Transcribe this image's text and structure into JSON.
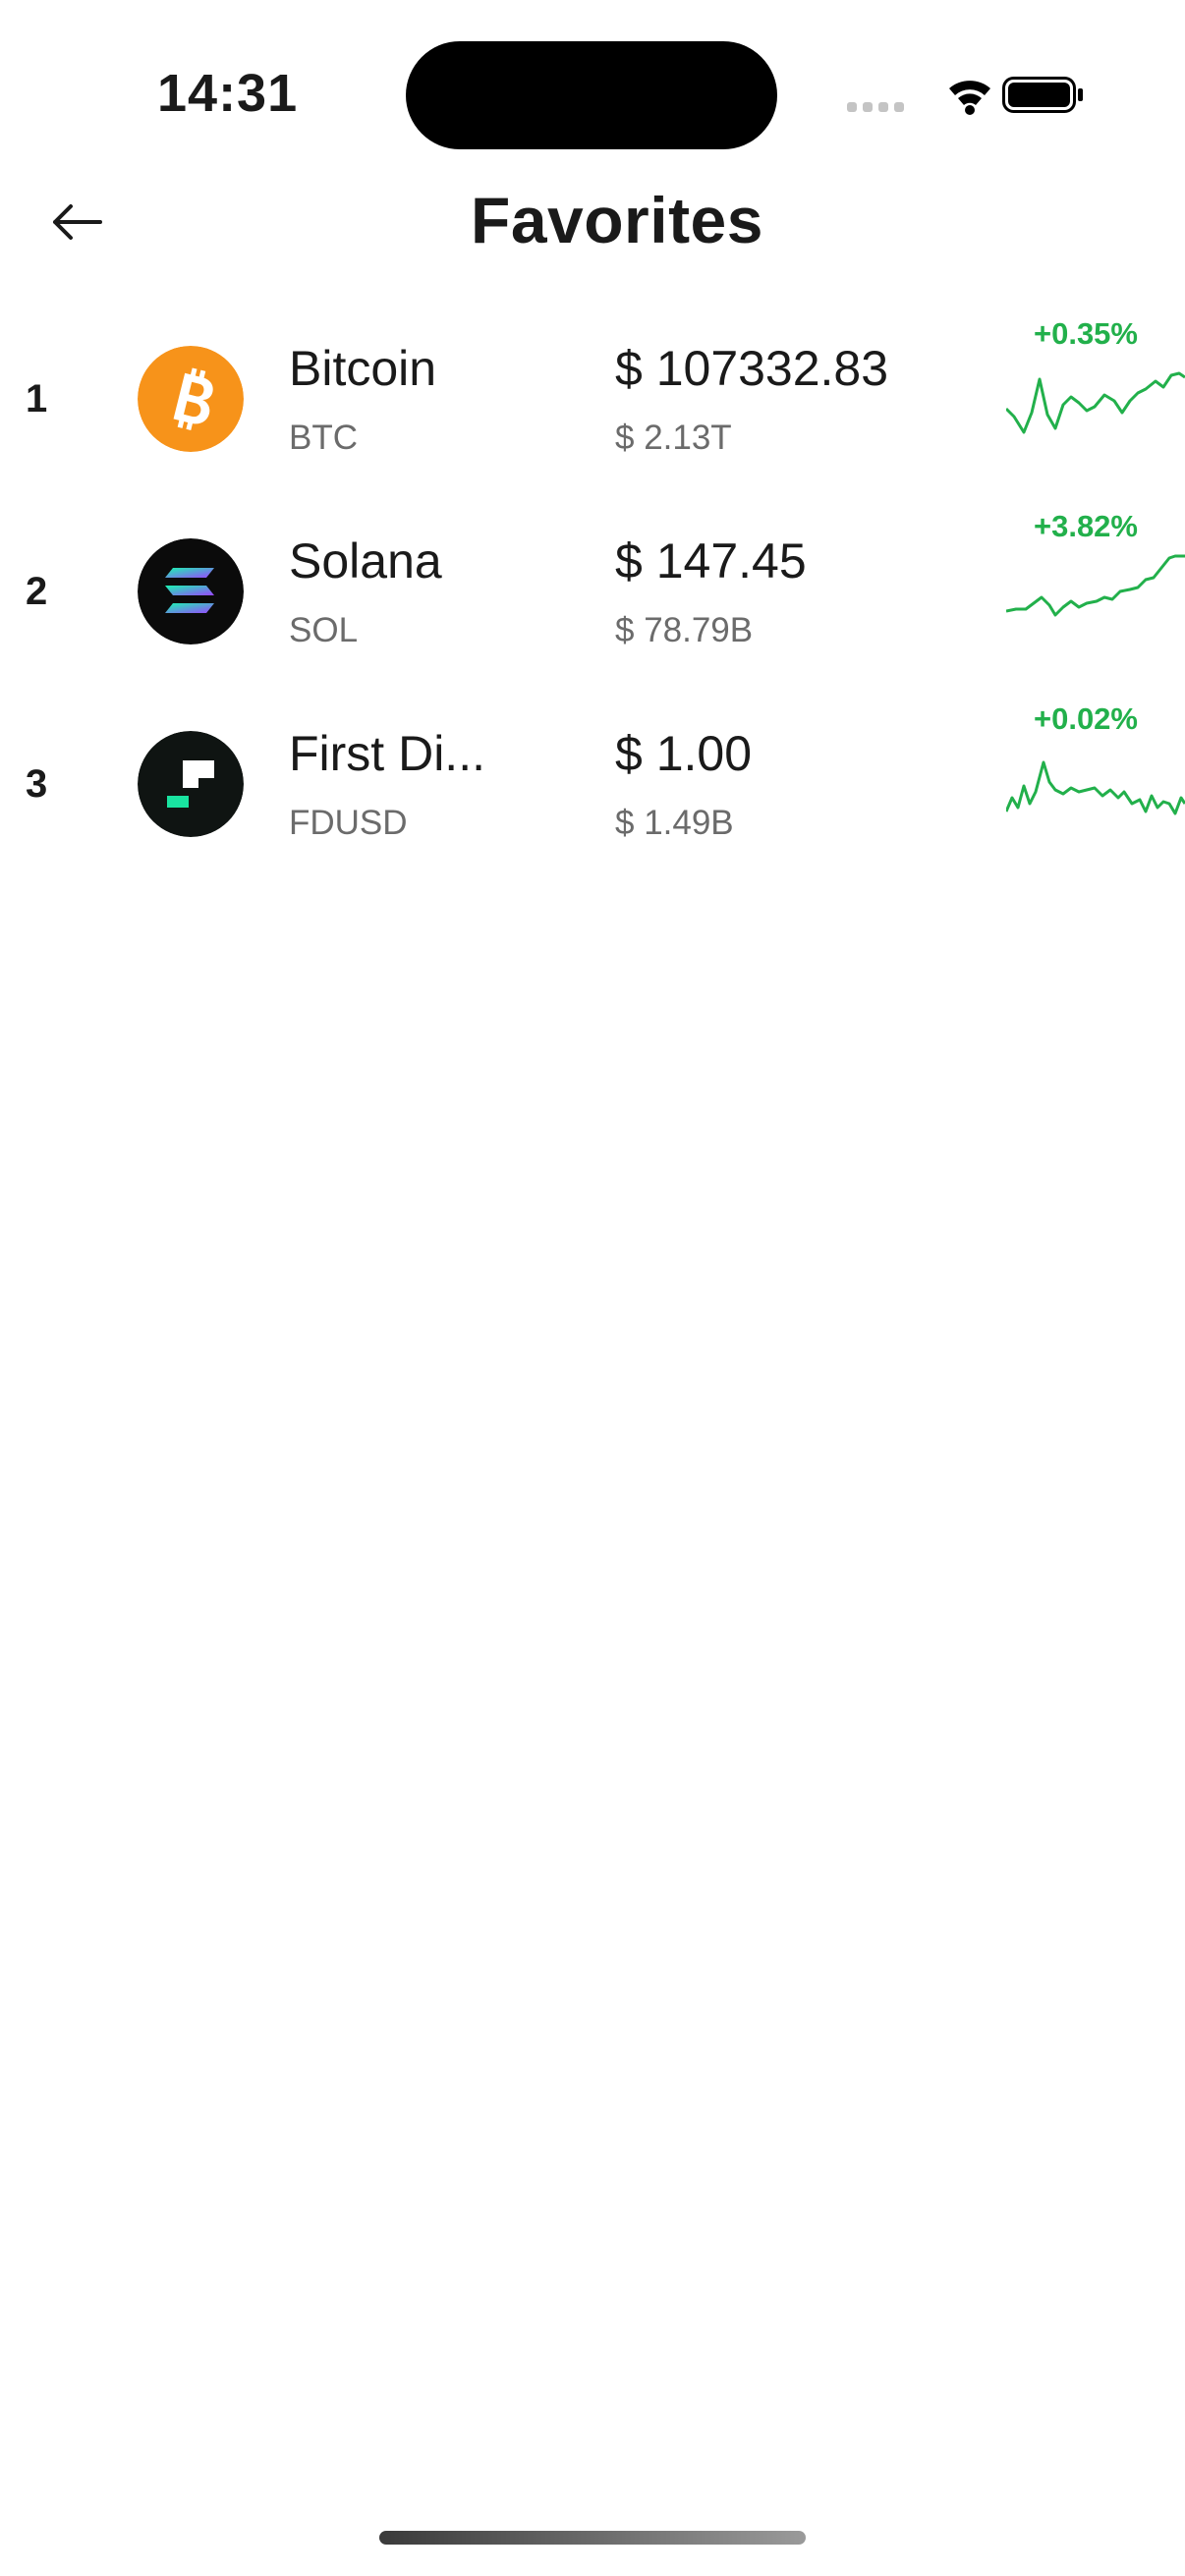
{
  "status_bar": {
    "time": "14:31"
  },
  "header": {
    "title": "Favorites"
  },
  "coins": [
    {
      "rank": "1",
      "name": "Bitcoin",
      "symbol": "BTC",
      "price": "$ 107332.83",
      "market_cap": "$ 2.13T",
      "change": "+0.35%",
      "icon": "bitcoin-logo"
    },
    {
      "rank": "2",
      "name": "Solana",
      "symbol": "SOL",
      "price": "$ 147.45",
      "market_cap": "$ 78.79B",
      "change": "+3.82%",
      "icon": "solana-logo"
    },
    {
      "rank": "3",
      "name": "First Di...",
      "symbol": "FDUSD",
      "price": "$ 1.00",
      "market_cap": "$ 1.49B",
      "change": "+0.02%",
      "icon": "first-digital-logo"
    }
  ],
  "colors": {
    "positive": "#22b04b",
    "bitcoin": "#f7931a"
  }
}
